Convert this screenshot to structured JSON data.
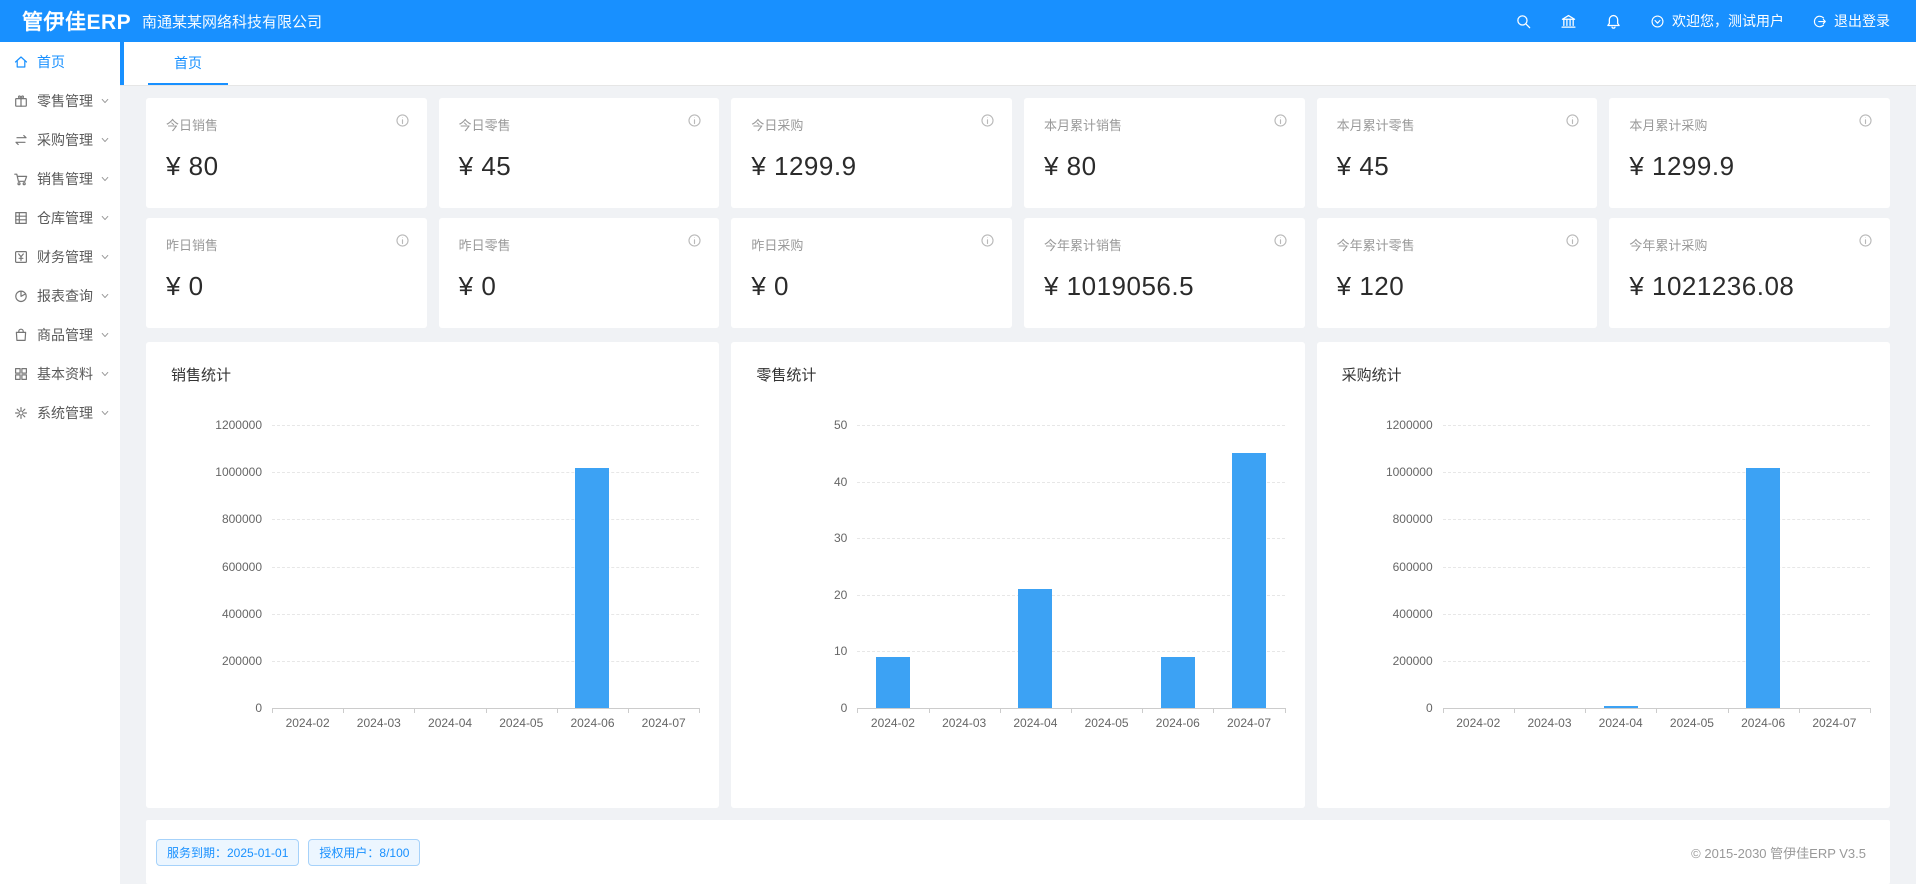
{
  "colors": {
    "primary": "#1890ff",
    "bar": "#3CA2F4",
    "badge_border": "#a6d2fa",
    "badge_bg": "#ecf6ff"
  },
  "header": {
    "logo": "管伊佳ERP",
    "company": "南通某某网络科技有限公司",
    "welcome": "欢迎您，测试用户",
    "logout": "退出登录"
  },
  "sidebar": {
    "items": [
      {
        "id": "home",
        "label": "首页",
        "icon": "home-icon",
        "active": true,
        "expandable": false
      },
      {
        "id": "retail",
        "label": "零售管理",
        "icon": "retail-icon",
        "active": false,
        "expandable": true
      },
      {
        "id": "purchase",
        "label": "采购管理",
        "icon": "purchase-icon",
        "active": false,
        "expandable": true
      },
      {
        "id": "sales",
        "label": "销售管理",
        "icon": "sales-icon",
        "active": false,
        "expandable": true
      },
      {
        "id": "warehouse",
        "label": "仓库管理",
        "icon": "warehouse-icon",
        "active": false,
        "expandable": true
      },
      {
        "id": "finance",
        "label": "财务管理",
        "icon": "finance-icon",
        "active": false,
        "expandable": true
      },
      {
        "id": "report",
        "label": "报表查询",
        "icon": "report-icon",
        "active": false,
        "expandable": true
      },
      {
        "id": "goods",
        "label": "商品管理",
        "icon": "goods-icon",
        "active": false,
        "expandable": true
      },
      {
        "id": "basedata",
        "label": "基本资料",
        "icon": "basedata-icon",
        "active": false,
        "expandable": true
      },
      {
        "id": "system",
        "label": "系统管理",
        "icon": "system-icon",
        "active": false,
        "expandable": true
      }
    ]
  },
  "tabs": [
    {
      "id": "home",
      "label": "首页",
      "active": true
    }
  ],
  "stats": [
    {
      "label": "今日销售",
      "value": "¥ 80"
    },
    {
      "label": "今日零售",
      "value": "¥ 45"
    },
    {
      "label": "今日采购",
      "value": "¥ 1299.9"
    },
    {
      "label": "本月累计销售",
      "value": "¥ 80"
    },
    {
      "label": "本月累计零售",
      "value": "¥ 45"
    },
    {
      "label": "本月累计采购",
      "value": "¥ 1299.9"
    },
    {
      "label": "昨日销售",
      "value": "¥ 0"
    },
    {
      "label": "昨日零售",
      "value": "¥ 0"
    },
    {
      "label": "昨日采购",
      "value": "¥ 0"
    },
    {
      "label": "今年累计销售",
      "value": "¥ 1019056.5"
    },
    {
      "label": "今年累计零售",
      "value": "¥ 120"
    },
    {
      "label": "今年累计采购",
      "value": "¥ 1021236.08"
    }
  ],
  "chart_data": [
    {
      "id": "sales-stats",
      "type": "bar",
      "title": "销售统计",
      "categories": [
        "2024-02",
        "2024-03",
        "2024-04",
        "2024-05",
        "2024-06",
        "2024-07"
      ],
      "values": [
        0,
        0,
        0,
        0,
        1018976.5,
        80
      ],
      "xlabel": "",
      "ylabel": "",
      "ylim": [
        0,
        1200000
      ],
      "yticks": [
        0,
        200000,
        400000,
        600000,
        800000,
        1000000,
        1200000
      ],
      "grid": true,
      "legend": false,
      "bar_color": "#3CA2F4"
    },
    {
      "id": "retail-stats",
      "type": "bar",
      "title": "零售统计",
      "categories": [
        "2024-02",
        "2024-03",
        "2024-04",
        "2024-05",
        "2024-06",
        "2024-07"
      ],
      "values": [
        9,
        0,
        21,
        0,
        9,
        45
      ],
      "xlabel": "",
      "ylabel": "",
      "ylim": [
        0,
        50
      ],
      "yticks": [
        0,
        10,
        20,
        30,
        40,
        50
      ],
      "grid": true,
      "legend": false,
      "bar_color": "#3CA2F4"
    },
    {
      "id": "purchase-stats",
      "type": "bar",
      "title": "采购统计",
      "categories": [
        "2024-02",
        "2024-03",
        "2024-04",
        "2024-05",
        "2024-06",
        "2024-07"
      ],
      "values": [
        0,
        0,
        3000,
        0,
        1016936,
        1299.9
      ],
      "xlabel": "",
      "ylabel": "",
      "ylim": [
        0,
        1200000
      ],
      "yticks": [
        0,
        200000,
        400000,
        600000,
        800000,
        1000000,
        1200000
      ],
      "grid": true,
      "legend": false,
      "bar_color": "#3CA2F4"
    }
  ],
  "footer": {
    "service": "服务到期：2025-01-01",
    "license": "授权用户：8/100",
    "copyright": "© 2015-2030 管伊佳ERP V3.5"
  }
}
